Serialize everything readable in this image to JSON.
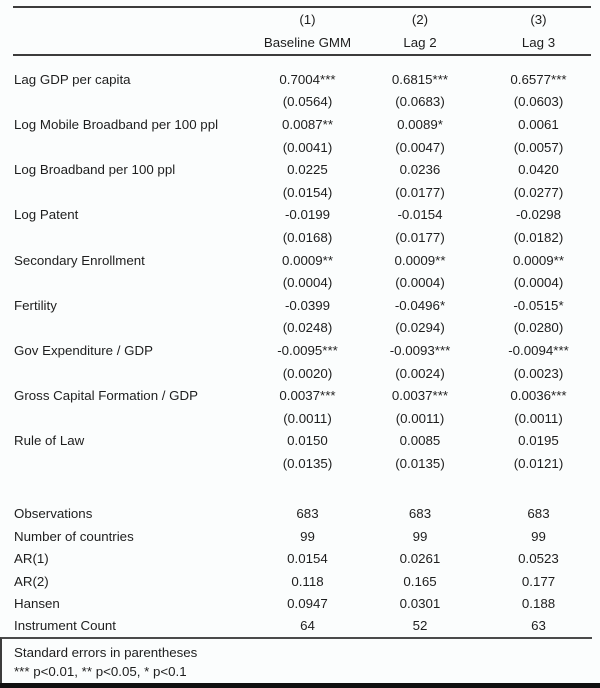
{
  "table": {
    "header": {
      "col_numbers": [
        "(1)",
        "(2)",
        "(3)"
      ],
      "col_names": [
        "Baseline GMM",
        "Lag 2",
        "Lag 3"
      ]
    },
    "coefficients": [
      {
        "label": "Lag GDP per capita",
        "values": [
          "0.7004***",
          "0.6815***",
          "0.6577***"
        ],
        "se": [
          "(0.0564)",
          "(0.0683)",
          "(0.0603)"
        ]
      },
      {
        "label": "Log Mobile Broadband per 100 ppl",
        "values": [
          "0.0087**",
          "0.0089*",
          "0.0061"
        ],
        "se": [
          "(0.0041)",
          "(0.0047)",
          "(0.0057)"
        ]
      },
      {
        "label": "Log Broadband per 100 ppl",
        "values": [
          "0.0225",
          "0.0236",
          "0.0420"
        ],
        "se": [
          "(0.0154)",
          "(0.0177)",
          "(0.0277)"
        ]
      },
      {
        "label": "Log Patent",
        "values": [
          "-0.0199",
          "-0.0154",
          "-0.0298"
        ],
        "se": [
          "(0.0168)",
          "(0.0177)",
          "(0.0182)"
        ]
      },
      {
        "label": "Secondary Enrollment",
        "values": [
          "0.0009**",
          "0.0009**",
          "0.0009**"
        ],
        "se": [
          "(0.0004)",
          "(0.0004)",
          "(0.0004)"
        ]
      },
      {
        "label": "Fertility",
        "values": [
          "-0.0399",
          "-0.0496*",
          "-0.0515*"
        ],
        "se": [
          "(0.0248)",
          "(0.0294)",
          "(0.0280)"
        ]
      },
      {
        "label": "Gov Expenditure / GDP",
        "values": [
          "-0.0095***",
          "-0.0093***",
          "-0.0094***"
        ],
        "se": [
          "(0.0020)",
          "(0.0024)",
          "(0.0023)"
        ]
      },
      {
        "label": "Gross Capital Formation / GDP",
        "values": [
          "0.0037***",
          "0.0037***",
          "0.0036***"
        ],
        "se": [
          "(0.0011)",
          "(0.0011)",
          "(0.0011)"
        ]
      },
      {
        "label": "Rule of Law",
        "values": [
          "0.0150",
          "0.0085",
          "0.0195"
        ],
        "se": [
          "(0.0135)",
          "(0.0135)",
          "(0.0121)"
        ]
      }
    ],
    "statistics": [
      {
        "label": "Observations",
        "values": [
          "683",
          "683",
          "683"
        ]
      },
      {
        "label": "Number of countries",
        "values": [
          "99",
          "99",
          "99"
        ]
      },
      {
        "label": "AR(1)",
        "values": [
          "0.0154",
          "0.0261",
          "0.0523"
        ]
      },
      {
        "label": "AR(2)",
        "values": [
          "0.118",
          "0.165",
          "0.177"
        ]
      },
      {
        "label": "Hansen",
        "values": [
          "0.0947",
          "0.0301",
          "0.188"
        ]
      },
      {
        "label": "Instrument Count",
        "values": [
          "64",
          "52",
          "63"
        ]
      }
    ],
    "notes": [
      "Standard errors in parentheses",
      "*** p<0.01, ** p<0.05, * p<0.1"
    ]
  }
}
